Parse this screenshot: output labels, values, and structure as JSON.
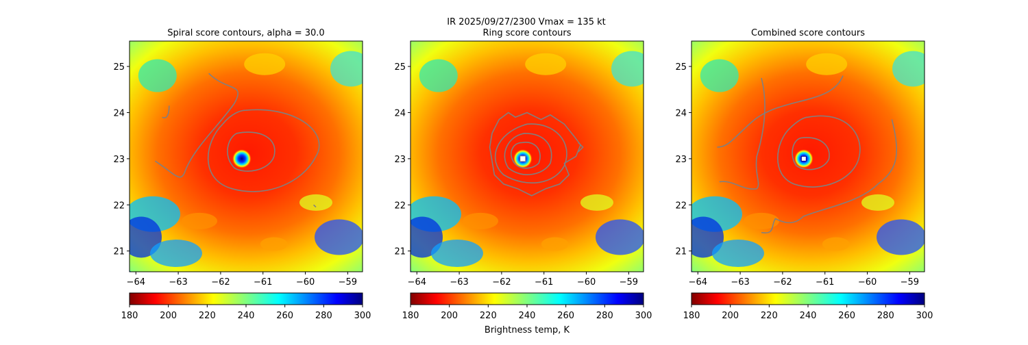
{
  "suptitle": "IR  2025/09/27/2300    Vmax = 135 kt",
  "colorbar": {
    "label": "Brightness temp, K",
    "ticks": [
      180,
      200,
      220,
      240,
      260,
      280,
      300
    ],
    "range": [
      180,
      300
    ],
    "colormap": "jet_r"
  },
  "chart_data": [
    {
      "type": "heatmap",
      "title": "Spiral score contours, alpha = 30.0",
      "xlim": [
        -64.15,
        -58.65
      ],
      "ylim": [
        20.55,
        25.55
      ],
      "xticks": [
        -64,
        -63,
        -62,
        -61,
        -60,
        -59
      ],
      "yticks": [
        21,
        22,
        23,
        24,
        25
      ],
      "field": "IR brightness temperature (K)",
      "center": [
        -61.5,
        23.0
      ],
      "contour_color": "#808080"
    },
    {
      "type": "heatmap",
      "title": "Ring score contours",
      "xlim": [
        -64.15,
        -58.65
      ],
      "ylim": [
        20.55,
        25.55
      ],
      "xticks": [
        -64,
        -63,
        -62,
        -61,
        -60,
        -59
      ],
      "yticks": [
        21,
        22,
        23,
        24,
        25
      ],
      "field": "IR brightness temperature (K)",
      "center": [
        -61.5,
        23.0
      ],
      "contour_color": "#808080"
    },
    {
      "type": "heatmap",
      "title": "Combined score contours",
      "xlim": [
        -64.15,
        -58.65
      ],
      "ylim": [
        20.55,
        25.55
      ],
      "xticks": [
        -64,
        -63,
        -62,
        -61,
        -60,
        -59
      ],
      "yticks": [
        21,
        22,
        23,
        24,
        25
      ],
      "field": "IR brightness temperature (K)",
      "center": [
        -61.5,
        23.0
      ],
      "contour_color": "#808080"
    }
  ]
}
